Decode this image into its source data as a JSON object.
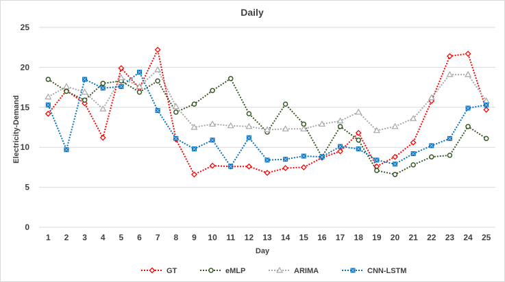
{
  "chart_data": {
    "type": "line",
    "title": "Daily",
    "xlabel": "Day",
    "ylabel": "Electricity-Demand",
    "ylim": [
      0,
      25
    ],
    "yticks": [
      "0",
      "5",
      "10",
      "15",
      "20",
      "25"
    ],
    "grid": "horizontal",
    "legend_position": "bottom",
    "categories": [
      "1",
      "2",
      "3",
      "4",
      "5",
      "6",
      "7",
      "8",
      "9",
      "10",
      "11",
      "12",
      "13",
      "14",
      "15",
      "16",
      "17",
      "18",
      "19",
      "20",
      "21",
      "22",
      "23",
      "24",
      "25"
    ],
    "series": [
      {
        "name": "GT",
        "color": "#ff0000",
        "marker": "diamond",
        "values": [
          14.2,
          17.1,
          15.5,
          11.2,
          19.9,
          17.4,
          22.2,
          11.0,
          6.6,
          7.7,
          7.6,
          7.6,
          6.8,
          7.4,
          7.5,
          8.7,
          9.5,
          11.8,
          7.6,
          8.8,
          10.6,
          15.8,
          21.4,
          21.7,
          14.7
        ]
      },
      {
        "name": "eMLP",
        "color": "#375623",
        "marker": "circle",
        "values": [
          18.5,
          17.0,
          15.9,
          18.0,
          18.3,
          16.9,
          18.3,
          14.4,
          15.4,
          17.1,
          18.6,
          14.2,
          11.9,
          15.4,
          12.9,
          8.8,
          12.6,
          10.9,
          7.1,
          6.6,
          7.8,
          8.8,
          9.0,
          12.6,
          11.1
        ]
      },
      {
        "name": "ARIMA",
        "color": "#a6a6a6",
        "marker": "triangle",
        "values": [
          16.3,
          17.6,
          16.9,
          14.8,
          18.7,
          17.6,
          19.7,
          15.1,
          12.5,
          12.9,
          12.7,
          12.6,
          12.2,
          12.3,
          12.3,
          12.9,
          13.3,
          14.4,
          12.1,
          12.6,
          13.6,
          16.2,
          19.1,
          19.1,
          15.8
        ]
      },
      {
        "name": "CNN-LSTM",
        "color": "#0070c0",
        "marker": "square",
        "values": [
          15.3,
          9.7,
          18.5,
          17.4,
          17.6,
          19.4,
          14.6,
          11.1,
          9.8,
          10.9,
          7.6,
          11.2,
          8.4,
          8.5,
          8.9,
          8.8,
          10.1,
          9.8,
          8.4,
          7.9,
          9.2,
          10.2,
          11.1,
          14.9,
          15.3
        ]
      }
    ]
  }
}
